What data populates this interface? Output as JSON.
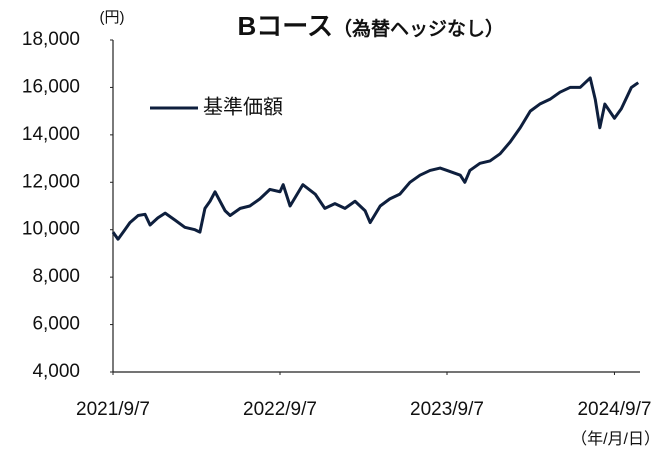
{
  "chart_data": {
    "type": "line",
    "title": "Bコース",
    "title_note": "（為替ヘッジなし）",
    "y_unit": "(円)",
    "x_unit": "（年/月/日）",
    "x": [
      "2021-09-07",
      "2021-09-18",
      "2021-10-03",
      "2021-10-14",
      "2021-11-01",
      "2021-11-16",
      "2021-11-27",
      "2021-12-14",
      "2021-12-30",
      "2022-01-21",
      "2022-02-11",
      "2022-03-05",
      "2022-03-16",
      "2022-03-27",
      "2022-04-07",
      "2022-04-18",
      "2022-05-10",
      "2022-05-21",
      "2022-06-12",
      "2022-07-03",
      "2022-07-25",
      "2022-08-16",
      "2022-09-07",
      "2022-09-14",
      "2022-09-29",
      "2022-10-27",
      "2022-11-23",
      "2022-12-14",
      "2023-01-05",
      "2023-01-27",
      "2023-02-18",
      "2023-03-12",
      "2023-03-23",
      "2023-04-14",
      "2023-05-05",
      "2023-05-27",
      "2023-06-18",
      "2023-07-10",
      "2023-08-01",
      "2023-08-23",
      "2023-09-07",
      "2023-10-06",
      "2023-10-16",
      "2023-10-27",
      "2023-11-18",
      "2023-12-10",
      "2024-01-01",
      "2024-01-23",
      "2024-02-14",
      "2024-03-07",
      "2024-03-28",
      "2024-04-19",
      "2024-05-11",
      "2024-06-02",
      "2024-06-24",
      "2024-07-16",
      "2024-07-27",
      "2024-08-06",
      "2024-08-17",
      "2024-09-07",
      "2024-09-22",
      "2024-10-14",
      "2024-10-29"
    ],
    "series": [
      {
        "name": "基準価額",
        "color": "#0e1f3d",
        "values": [
          9900,
          9600,
          10000,
          10300,
          10600,
          10650,
          10200,
          10500,
          10700,
          10400,
          10100,
          10000,
          9900,
          10900,
          11200,
          11600,
          10800,
          10600,
          10900,
          11000,
          11300,
          11700,
          11600,
          11900,
          11000,
          11900,
          11500,
          10900,
          11100,
          10900,
          11200,
          10800,
          10300,
          11000,
          11300,
          11500,
          12000,
          12300,
          12500,
          12600,
          12500,
          12300,
          12000,
          12500,
          12800,
          12900,
          13200,
          13700,
          14300,
          15000,
          15300,
          15500,
          15800,
          16000,
          16000,
          16400,
          15500,
          14300,
          15300,
          14700,
          15100,
          16000,
          16200
        ]
      }
    ],
    "xlim": [
      "2021-09-07",
      "2024-10-29"
    ],
    "xticks": [
      {
        "value": "2021-09-07",
        "label": "2021/9/7"
      },
      {
        "value": "2022-09-07",
        "label": "2022/9/7"
      },
      {
        "value": "2023-09-07",
        "label": "2023/9/7"
      },
      {
        "value": "2024-09-07",
        "label": "2024/9/7"
      }
    ],
    "ylim": [
      4000,
      18000
    ],
    "yticks": [
      {
        "value": 4000,
        "label": "4,000"
      },
      {
        "value": 6000,
        "label": "6,000"
      },
      {
        "value": 8000,
        "label": "8,000"
      },
      {
        "value": 10000,
        "label": "10,000"
      },
      {
        "value": 12000,
        "label": "12,000"
      },
      {
        "value": 14000,
        "label": "14,000"
      },
      {
        "value": 16000,
        "label": "16,000"
      },
      {
        "value": 18000,
        "label": "18,000"
      }
    ],
    "legend": "upper left",
    "grid": false
  }
}
